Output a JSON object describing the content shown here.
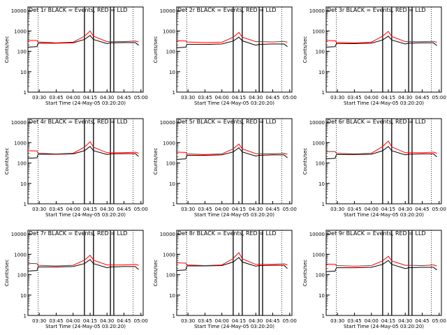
{
  "figure": {
    "xlabel": "Start Time (24-May-05 03:20:20)",
    "ylabel": "Counts/sec",
    "xticks": [
      "03:30",
      "03:45",
      "04:00",
      "04:15",
      "04:30",
      "04:45",
      "05:00"
    ],
    "yticks": [
      "1",
      "10",
      "100",
      "1000",
      "10000"
    ]
  },
  "colors": {
    "events": "#000000",
    "lld": "#ff0000"
  },
  "chart_data": [
    {
      "type": "line",
      "title": "Det 1r BLACK = Events, RED = LLD",
      "xlabel": "Start Time (24-May-05 03:20:20)",
      "ylabel": "Counts/sec",
      "y_scale": "log",
      "xlim": [
        "03:20",
        "05:02"
      ],
      "ylim": [
        1,
        15000
      ],
      "x": [
        "03:20",
        "03:28",
        "03:29",
        "03:45",
        "04:00",
        "04:10",
        "04:15",
        "04:18",
        "04:30",
        "04:33",
        "04:45",
        "04:55",
        "04:58"
      ],
      "series": [
        {
          "name": "Events",
          "color": "#000000",
          "values": [
            160,
            170,
            250,
            250,
            260,
            380,
            600,
            380,
            240,
            260,
            270,
            270,
            200
          ]
        },
        {
          "name": "LLD",
          "color": "#ff0000",
          "values": [
            350,
            340,
            290,
            260,
            280,
            550,
            1000,
            550,
            300,
            300,
            300,
            320,
            290
          ]
        }
      ]
    },
    {
      "type": "line",
      "title": "Det 2r BLACK = Events, RED = LLD",
      "xlabel": "Start Time (24-May-05 03:20:20)",
      "ylabel": "Counts/sec",
      "y_scale": "log",
      "xlim": [
        "03:20",
        "05:02"
      ],
      "ylim": [
        1,
        15000
      ],
      "x": [
        "03:20",
        "03:28",
        "03:29",
        "03:45",
        "04:00",
        "04:10",
        "04:15",
        "04:18",
        "04:30",
        "04:33",
        "04:45",
        "04:55",
        "04:58"
      ],
      "series": [
        {
          "name": "Events",
          "color": "#000000",
          "values": [
            150,
            160,
            220,
            220,
            230,
            320,
            500,
            330,
            200,
            220,
            230,
            230,
            170
          ]
        },
        {
          "name": "LLD",
          "color": "#ff0000",
          "values": [
            330,
            320,
            290,
            270,
            280,
            500,
            850,
            500,
            300,
            300,
            290,
            310,
            280
          ]
        }
      ]
    },
    {
      "type": "line",
      "title": "Det 3r BLACK = Events, RED = LLD",
      "xlabel": "Start Time (24-May-05 03:20:20)",
      "ylabel": "Counts/sec",
      "y_scale": "log",
      "xlim": [
        "03:20",
        "05:02"
      ],
      "ylim": [
        1,
        15000
      ],
      "x": [
        "03:20",
        "03:28",
        "03:29",
        "03:45",
        "04:00",
        "04:10",
        "04:15",
        "04:18",
        "04:30",
        "04:33",
        "04:45",
        "04:55",
        "04:58"
      ],
      "series": [
        {
          "name": "Events",
          "color": "#000000",
          "values": [
            160,
            170,
            240,
            240,
            250,
            360,
            560,
            360,
            230,
            250,
            260,
            260,
            190
          ]
        },
        {
          "name": "LLD",
          "color": "#ff0000",
          "values": [
            340,
            330,
            280,
            260,
            280,
            560,
            950,
            540,
            300,
            300,
            300,
            310,
            280
          ]
        }
      ]
    },
    {
      "type": "line",
      "title": "Det 4r BLACK = Events, RED = LLD",
      "xlabel": "Start Time (24-May-05 03:20:20)",
      "ylabel": "Counts/sec",
      "y_scale": "log",
      "xlim": [
        "03:20",
        "05:02"
      ],
      "ylim": [
        1,
        15000
      ],
      "x": [
        "03:20",
        "03:28",
        "03:29",
        "03:45",
        "04:00",
        "04:10",
        "04:15",
        "04:18",
        "04:30",
        "04:33",
        "04:45",
        "04:55",
        "04:58"
      ],
      "series": [
        {
          "name": "Events",
          "color": "#000000",
          "values": [
            170,
            180,
            270,
            270,
            280,
            400,
            650,
            400,
            260,
            280,
            290,
            290,
            210
          ]
        },
        {
          "name": "LLD",
          "color": "#ff0000",
          "values": [
            400,
            390,
            300,
            280,
            300,
            600,
            1100,
            600,
            320,
            320,
            320,
            340,
            300
          ]
        }
      ]
    },
    {
      "type": "line",
      "title": "Det 5r BLACK = Events, RED = LLD",
      "xlabel": "Start Time (24-May-05 03:20:20)",
      "ylabel": "Counts/sec",
      "y_scale": "log",
      "xlim": [
        "03:20",
        "05:02"
      ],
      "ylim": [
        1,
        15000
      ],
      "x": [
        "03:20",
        "03:28",
        "03:29",
        "03:45",
        "04:00",
        "04:10",
        "04:15",
        "04:18",
        "04:30",
        "04:33",
        "04:45",
        "04:55",
        "04:58"
      ],
      "series": [
        {
          "name": "Events",
          "color": "#000000",
          "values": [
            150,
            160,
            240,
            240,
            250,
            350,
            560,
            350,
            220,
            240,
            250,
            250,
            180
          ]
        },
        {
          "name": "LLD",
          "color": "#ff0000",
          "values": [
            340,
            330,
            280,
            260,
            280,
            500,
            850,
            500,
            290,
            290,
            280,
            300,
            270
          ]
        }
      ]
    },
    {
      "type": "line",
      "title": "Det 6r BLACK = Events, RED = LLD",
      "xlabel": "Start Time (24-May-05 03:20:20)",
      "ylabel": "Counts/sec",
      "y_scale": "log",
      "xlim": [
        "03:20",
        "05:02"
      ],
      "ylim": [
        1,
        15000
      ],
      "x": [
        "03:20",
        "03:28",
        "03:29",
        "03:45",
        "04:00",
        "04:10",
        "04:15",
        "04:18",
        "04:30",
        "04:33",
        "04:45",
        "04:55",
        "04:58"
      ],
      "series": [
        {
          "name": "Events",
          "color": "#000000",
          "values": [
            160,
            170,
            260,
            260,
            270,
            400,
            650,
            400,
            250,
            270,
            280,
            280,
            200
          ]
        },
        {
          "name": "LLD",
          "color": "#ff0000",
          "values": [
            370,
            360,
            300,
            280,
            300,
            650,
            1200,
            620,
            320,
            320,
            320,
            340,
            300
          ]
        }
      ]
    },
    {
      "type": "line",
      "title": "Det 7r BLACK = Events, RED = LLD",
      "xlabel": "Start Time (24-May-05 03:20:20)",
      "ylabel": "Counts/sec",
      "y_scale": "log",
      "xlim": [
        "03:20",
        "05:02"
      ],
      "ylim": [
        1,
        15000
      ],
      "x": [
        "03:20",
        "03:28",
        "03:29",
        "03:45",
        "04:00",
        "04:10",
        "04:15",
        "04:18",
        "04:30",
        "04:33",
        "04:45",
        "04:55",
        "04:58"
      ],
      "series": [
        {
          "name": "Events",
          "color": "#000000",
          "values": [
            150,
            160,
            240,
            240,
            250,
            350,
            550,
            350,
            220,
            240,
            250,
            250,
            180
          ]
        },
        {
          "name": "LLD",
          "color": "#ff0000",
          "values": [
            360,
            350,
            290,
            270,
            290,
            520,
            900,
            520,
            300,
            300,
            300,
            320,
            290
          ]
        }
      ]
    },
    {
      "type": "line",
      "title": "Det 8r BLACK = Events, RED = LLD",
      "xlabel": "Start Time (24-May-05 03:20:20)",
      "ylabel": "Counts/sec",
      "y_scale": "log",
      "xlim": [
        "03:20",
        "05:02"
      ],
      "ylim": [
        1,
        15000
      ],
      "x": [
        "03:20",
        "03:28",
        "03:29",
        "03:45",
        "04:00",
        "04:10",
        "04:15",
        "04:18",
        "04:30",
        "04:33",
        "04:45",
        "04:55",
        "04:58"
      ],
      "series": [
        {
          "name": "Events",
          "color": "#000000",
          "values": [
            160,
            170,
            270,
            270,
            280,
            420,
            700,
            420,
            260,
            280,
            290,
            290,
            200
          ]
        },
        {
          "name": "LLD",
          "color": "#ff0000",
          "values": [
            380,
            370,
            300,
            280,
            300,
            620,
            1200,
            600,
            320,
            320,
            320,
            340,
            300
          ]
        }
      ]
    },
    {
      "type": "line",
      "title": "Det 9r BLACK = Events, RED = LLD",
      "xlabel": "Start Time (24-May-05 03:20:20)",
      "ylabel": "Counts/sec",
      "y_scale": "log",
      "xlim": [
        "03:20",
        "05:02"
      ],
      "ylim": [
        1,
        15000
      ],
      "x": [
        "03:20",
        "03:28",
        "03:29",
        "03:45",
        "04:00",
        "04:10",
        "04:15",
        "04:18",
        "04:30",
        "04:33",
        "04:45",
        "04:55",
        "04:58"
      ],
      "series": [
        {
          "name": "Events",
          "color": "#000000",
          "values": [
            140,
            150,
            220,
            220,
            230,
            320,
            500,
            320,
            200,
            220,
            230,
            230,
            170
          ]
        },
        {
          "name": "LLD",
          "color": "#ff0000",
          "values": [
            330,
            320,
            280,
            260,
            280,
            480,
            800,
            480,
            290,
            290,
            280,
            300,
            270
          ]
        }
      ]
    }
  ]
}
